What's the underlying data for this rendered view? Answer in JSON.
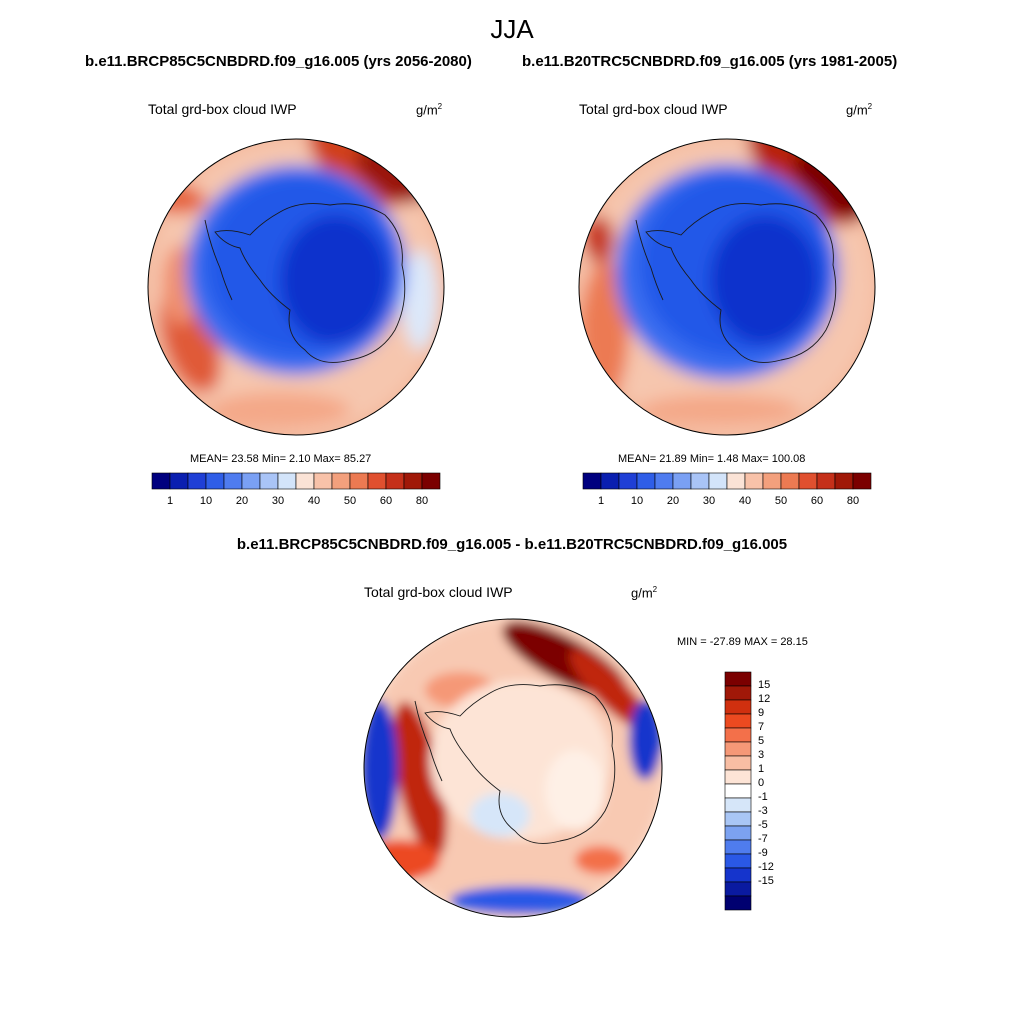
{
  "title": "JJA",
  "panels": [
    {
      "case_label": "b.e11.BRCP85C5CNBDRD.f09_g16.005 (yrs 2056-2080)",
      "variable": "Total grd-box cloud IWP",
      "units_base": "g/m",
      "units_exp": "2",
      "stats": "MEAN=  23.58  Min=   2.10  Max=  85.27",
      "mean": 23.58,
      "min": 2.1,
      "max": 85.27
    },
    {
      "case_label": "b.e11.B20TRC5CNBDRD.f09_g16.005 (yrs 1981-2005)",
      "variable": "Total grd-box cloud IWP",
      "units_base": "g/m",
      "units_exp": "2",
      "stats": "MEAN=  21.89  Min=   1.48  Max= 100.08",
      "mean": 21.89,
      "min": 1.48,
      "max": 100.08
    }
  ],
  "difference": {
    "title": "b.e11.BRCP85C5CNBDRD.f09_g16.005 - b.e11.B20TRC5CNBDRD.f09_g16.005",
    "variable": "Total grd-box cloud IWP",
    "units_base": "g/m",
    "units_exp": "2",
    "stats": "MIN = -27.89 MAX =  28.15",
    "min": -27.89,
    "max": 28.15
  },
  "colorbar_abs": {
    "colors": [
      "#00007f",
      "#0a1fb0",
      "#1f3fd6",
      "#2f5ee8",
      "#4f7cf0",
      "#7aa0f4",
      "#a9c4f7",
      "#d3e4fa",
      "#fbe3d6",
      "#f8c2a9",
      "#f3a07d",
      "#ec7a52",
      "#e0502f",
      "#c5301a",
      "#a01808",
      "#7b0000"
    ],
    "ticks": [
      "1",
      "10",
      "20",
      "30",
      "40",
      "50",
      "60",
      "80"
    ]
  },
  "colorbar_diff": {
    "colors": [
      "#7b0000",
      "#a01808",
      "#d0300f",
      "#ec4a20",
      "#f3704a",
      "#f59877",
      "#f8bea4",
      "#fde4d6",
      "#ffffff",
      "#d6e6f9",
      "#a9c6f5",
      "#7ca2f1",
      "#4f7cee",
      "#2a58e6",
      "#1534cc",
      "#0a1aa0",
      "#000070"
    ],
    "ticks": [
      "15",
      "12",
      "9",
      "7",
      "5",
      "3",
      "1",
      "0",
      "-1",
      "-3",
      "-5",
      "-7",
      "-9",
      "-12",
      "-15"
    ]
  }
}
